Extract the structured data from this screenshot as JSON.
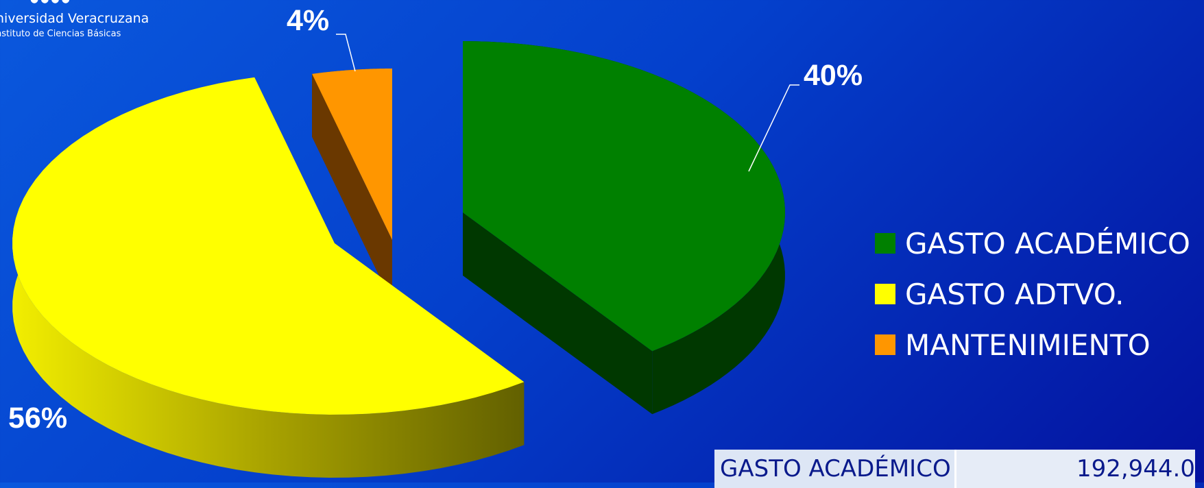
{
  "header": {
    "university": "niversidad Veracruzana",
    "institute": "nstituto de Ciencias Básicas"
  },
  "colors": {
    "academico": "#008000",
    "administrativo": "#ffff00",
    "mantenimiento": "#ff9600"
  },
  "chart_data": {
    "type": "pie",
    "style": "3d-exploded",
    "categories": [
      "GASTO ACADÉMICO",
      "GASTO ADTVO.",
      "MANTENIMIENTO"
    ],
    "values": [
      40,
      56,
      4
    ],
    "data_labels": [
      "40%",
      "56%",
      "4%"
    ],
    "legend": {
      "position": "right",
      "items": [
        "GASTO ACADÉMICO",
        "GASTO ADTVO.",
        "MANTENIMIENTO"
      ]
    }
  },
  "table": {
    "rows": [
      {
        "label": "GASTO ACADÉMICO",
        "value": "192,944.0"
      }
    ]
  }
}
